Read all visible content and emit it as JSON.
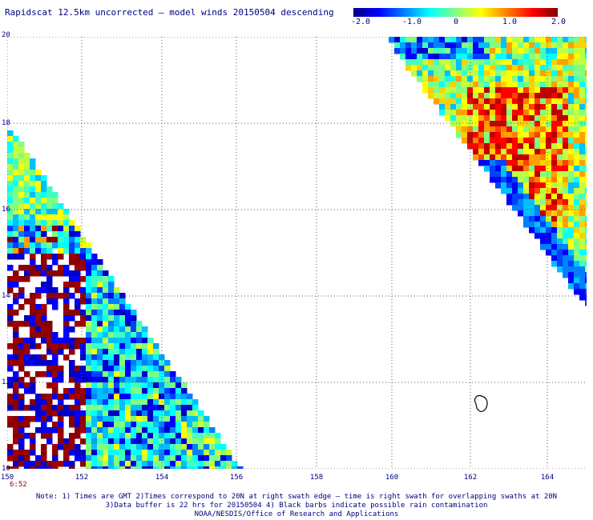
{
  "title": "Rapidscat 12.5km uncorrected — model winds 20150504 descending",
  "colorbar": {
    "ticks": [
      "-2.0",
      "-1.0",
      "0",
      "1.0",
      "2.0"
    ],
    "colors": [
      "#000080",
      "#0000ff",
      "#0080ff",
      "#00ffff",
      "#80ff80",
      "#ffff00",
      "#ff8000",
      "#ff0000",
      "#800000"
    ]
  },
  "map": {
    "lat_labels": [
      "20",
      "18",
      "16",
      "14",
      "12",
      "10"
    ],
    "lon_labels": [
      "150",
      "152",
      "154",
      "156",
      "158",
      "160",
      "162",
      "164"
    ],
    "lat_range": [
      10,
      20
    ],
    "lon_range": [
      150,
      164.9
    ],
    "gridlines": "dotted",
    "coastline_island": "near 162.3E, 11.5N"
  },
  "swath_time": "6:52",
  "notes": {
    "line1": "Note: 1) Times are GMT 2)Times correspond to 20N at right swath edge — time is right swath for overlapping swaths at 20N",
    "line2": "3)Data buffer is 22 hrs for 20150504 4) Black barbs indicate possible rain contamination",
    "line3": "NOAA/NESDIS/Office of Research and Applications"
  }
}
